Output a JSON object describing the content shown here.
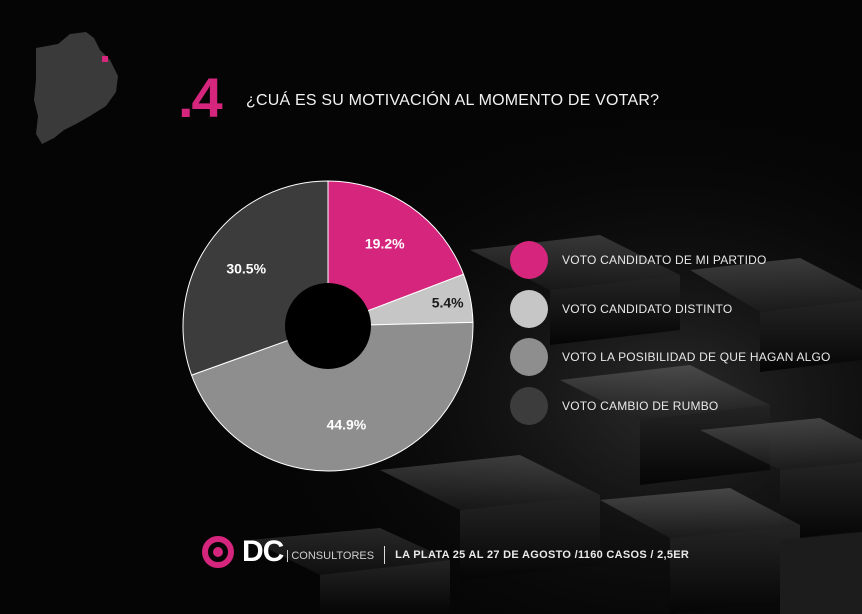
{
  "question": {
    "number": ".4",
    "text": "¿CUÁ ES SU MOTIVACIÓN AL MOMENTO DE VOTAR?"
  },
  "chart_data": {
    "type": "pie",
    "title": "¿CUÁ ES SU MOTIVACIÓN AL MOMENTO DE VOTAR?",
    "donut": true,
    "slices": [
      {
        "label": "VOTO CANDIDATO DE MI PARTIDO",
        "value": 19.2,
        "display": "19.2%",
        "color": "#d6257d"
      },
      {
        "label": "VOTO CANDIDATO DISTINTO",
        "value": 5.4,
        "display": "5.4%",
        "color": "#c6c6c6"
      },
      {
        "label": "VOTO LA POSIBILIDAD DE QUE HAGAN ALGO",
        "value": 44.9,
        "display": "44.9%",
        "color": "#8e8e8e"
      },
      {
        "label": "VOTO CAMBIO DE RUMBO",
        "value": 30.5,
        "display": "30.5%",
        "color": "#3c3c3c"
      }
    ],
    "legend_position": "right"
  },
  "footer": {
    "brand": "DC",
    "brand_sub": "CONSULTORES",
    "info": "LA PLATA 25 AL 27 DE AGOSTO /1160 CASOS / 2,5ER"
  },
  "colors": {
    "accent": "#d6257d",
    "background": "#050505"
  }
}
